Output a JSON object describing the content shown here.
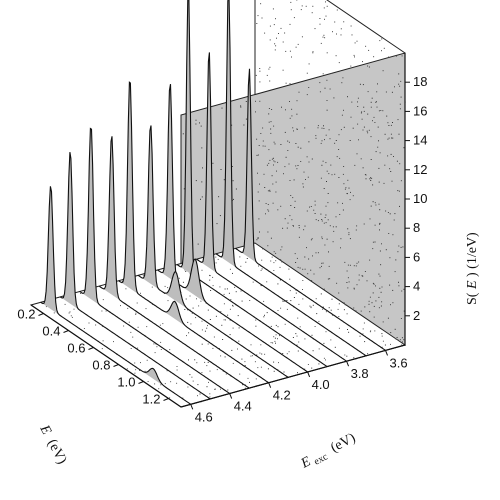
{
  "chart_data": {
    "type": "waterfall-3d",
    "title": "",
    "x_axis": {
      "label_var": "E",
      "label_unit": "(eV)",
      "ticks": [
        "0.2",
        "0.4",
        "0.6",
        "0.8",
        "1.0",
        "1.2"
      ],
      "tick_values": [
        0.2,
        0.4,
        0.6,
        0.8,
        1.0,
        1.2
      ],
      "range": [
        0.1,
        1.3
      ]
    },
    "y_axis": {
      "label_var": "E",
      "label_sub": "exc",
      "label_unit": "(eV)",
      "ticks": [
        "3.6",
        "3.8",
        "4.0",
        "4.2",
        "4.4",
        "4.6"
      ],
      "tick_values": [
        3.6,
        3.8,
        4.0,
        4.2,
        4.4,
        4.6
      ],
      "range": [
        3.5,
        4.65
      ]
    },
    "z_axis": {
      "label_pre": "S(",
      "label_var": "E",
      "label_post": ") (1/eV)",
      "ticks": [
        "2",
        "4",
        "6",
        "8",
        "10",
        "12",
        "14",
        "16",
        "18"
      ],
      "tick_values": [
        2,
        4,
        6,
        8,
        10,
        12,
        14,
        16,
        18
      ],
      "range": [
        0,
        20
      ]
    },
    "series": [
      {
        "e_exc": 4.6,
        "peaks": [
          {
            "pos": 0.18,
            "height": 8.5,
            "width": 0.018
          },
          {
            "pos": 1.0,
            "height": 0.7,
            "width": 0.03
          }
        ]
      },
      {
        "e_exc": 4.5,
        "peaks": [
          {
            "pos": 0.18,
            "height": 10.5,
            "width": 0.018
          }
        ]
      },
      {
        "e_exc": 4.4,
        "peaks": [
          {
            "pos": 0.19,
            "height": 12.0,
            "width": 0.018
          }
        ]
      },
      {
        "e_exc": 4.3,
        "peaks": [
          {
            "pos": 0.2,
            "height": 11.0,
            "width": 0.018
          }
        ]
      },
      {
        "e_exc": 4.2,
        "peaks": [
          {
            "pos": 0.19,
            "height": 14.5,
            "width": 0.018
          },
          {
            "pos": 0.55,
            "height": 1.2,
            "width": 0.03
          }
        ]
      },
      {
        "e_exc": 4.1,
        "peaks": [
          {
            "pos": 0.2,
            "height": 11.0,
            "width": 0.018
          },
          {
            "pos": 0.4,
            "height": 2.0,
            "width": 0.03
          }
        ]
      },
      {
        "e_exc": 4.0,
        "peaks": [
          {
            "pos": 0.2,
            "height": 13.5,
            "width": 0.018
          },
          {
            "pos": 0.4,
            "height": 2.5,
            "width": 0.03
          }
        ]
      },
      {
        "e_exc": 3.9,
        "peaks": [
          {
            "pos": 0.19,
            "height": 19.5,
            "width": 0.016
          }
        ]
      },
      {
        "e_exc": 3.8,
        "peaks": [
          {
            "pos": 0.2,
            "height": 15.0,
            "width": 0.016
          }
        ]
      },
      {
        "e_exc": 3.7,
        "peaks": [
          {
            "pos": 0.2,
            "height": 19.0,
            "width": 0.016
          }
        ]
      },
      {
        "e_exc": 3.6,
        "peaks": [
          {
            "pos": 0.21,
            "height": 13.0,
            "width": 0.016
          }
        ]
      }
    ],
    "grid": "dotted"
  }
}
